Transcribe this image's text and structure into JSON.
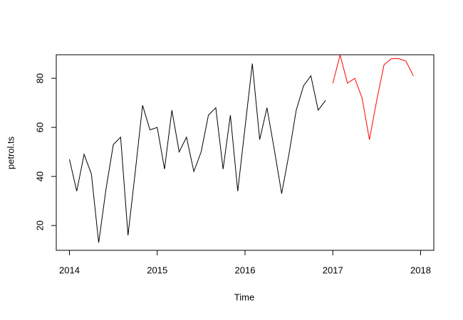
{
  "chart_data": {
    "type": "line",
    "xlabel": "Time",
    "ylabel": "petrol.ts",
    "xlim": [
      2013.85,
      2018.15
    ],
    "xticks": [
      2014,
      2015,
      2016,
      2017,
      2018
    ],
    "ylim": [
      9.9,
      89.6
    ],
    "yticks": [
      20,
      40,
      60,
      80
    ],
    "series": [
      {
        "color": "#000000",
        "x": [
          2014,
          2014.083,
          2014.167,
          2014.25,
          2014.333,
          2014.417,
          2014.5,
          2014.583,
          2014.667,
          2014.75,
          2014.833,
          2014.917,
          2015,
          2015.083,
          2015.167,
          2015.25,
          2015.333,
          2015.417,
          2015.5,
          2015.583,
          2015.667,
          2015.75,
          2015.833,
          2015.917,
          2016,
          2016.083,
          2016.167,
          2016.25,
          2016.333,
          2016.417,
          2016.5,
          2016.583,
          2016.667,
          2016.75,
          2016.833,
          2016.917
        ],
        "values": [
          47,
          34,
          49,
          41,
          13,
          35,
          53,
          56,
          16,
          42,
          69,
          59,
          60,
          43,
          67,
          50,
          56,
          42,
          50,
          65,
          68,
          43,
          65,
          34,
          60,
          86,
          55,
          68,
          51,
          33,
          49,
          67,
          77,
          81,
          67,
          71
        ]
      },
      {
        "color": "#ff0000",
        "x": [
          2017,
          2017.083,
          2017.167,
          2017.25,
          2017.333,
          2017.417,
          2017.5,
          2017.583,
          2017.667,
          2017.75,
          2017.833,
          2017.917
        ],
        "values": [
          78,
          89.5,
          78,
          80,
          72,
          55,
          71,
          85.5,
          88,
          88,
          87,
          81
        ]
      }
    ]
  }
}
